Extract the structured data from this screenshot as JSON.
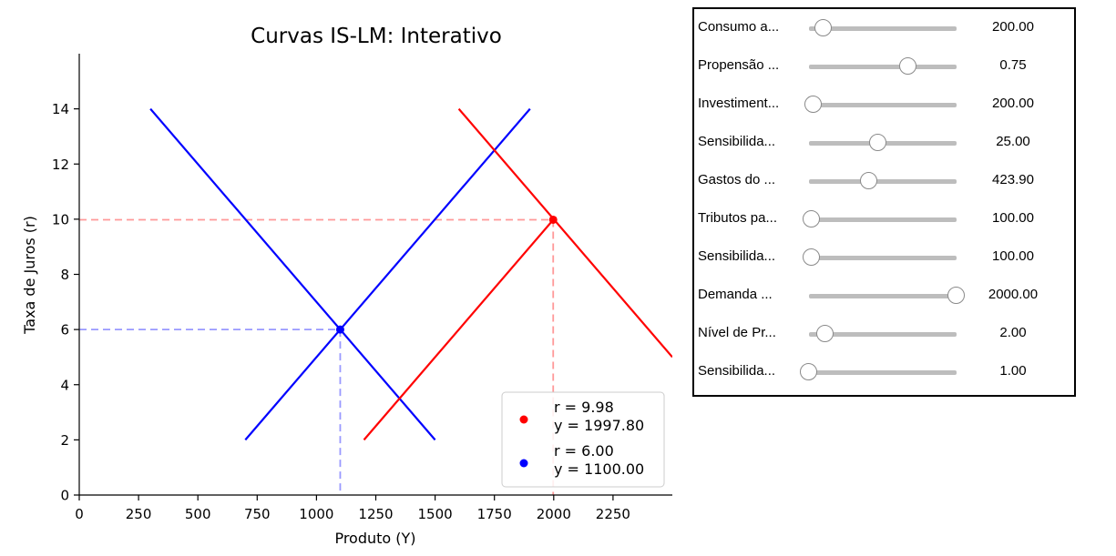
{
  "chart_data": {
    "type": "line",
    "title": "Curvas IS-LM: Interativo",
    "xlabel": "Produto (Y)",
    "ylabel": "Taxa de Juros (r)",
    "xlim": [
      0,
      2500
    ],
    "ylim": [
      0,
      16
    ],
    "xticks": [
      0,
      250,
      500,
      750,
      1000,
      1250,
      1500,
      1750,
      2000,
      2250
    ],
    "yticks": [
      0,
      2,
      4,
      6,
      8,
      10,
      12,
      14
    ],
    "grid": false,
    "legend_position": "lower right",
    "series": [
      {
        "color": "#0000ff",
        "x": [
          300,
          1500
        ],
        "y": [
          14,
          2
        ]
      },
      {
        "color": "#0000ff",
        "x": [
          700,
          1900
        ],
        "y": [
          2,
          14
        ]
      },
      {
        "color": "#ff0000",
        "x": [
          1600,
          2500
        ],
        "y": [
          14,
          5
        ]
      },
      {
        "color": "#ff0000",
        "x": [
          1200,
          2000
        ],
        "y": [
          2,
          10
        ]
      }
    ],
    "equilibria": [
      {
        "color": "#ff0000",
        "r": 9.98,
        "y": 1997.8,
        "label": "r = 9.98\ny = 1997.80"
      },
      {
        "color": "#0000ff",
        "r": 6.0,
        "y": 1100.0,
        "label": "r = 6.00\ny = 1100.00"
      }
    ],
    "reference_lines_color": {
      "red": "#ff9999",
      "blue": "#9999ff"
    }
  },
  "controls": {
    "sliders": [
      {
        "label": "Consumo a...",
        "value": "200.00",
        "fraction": 0.1
      },
      {
        "label": "Propensão ...",
        "value": "0.75",
        "fraction": 0.67
      },
      {
        "label": "Investiment...",
        "value": "200.00",
        "fraction": 0.03
      },
      {
        "label": "Sensibilida...",
        "value": "25.00",
        "fraction": 0.47
      },
      {
        "label": "Gastos do ...",
        "value": "423.90",
        "fraction": 0.41
      },
      {
        "label": "Tributos pa...",
        "value": "100.00",
        "fraction": 0.02
      },
      {
        "label": "Sensibilida...",
        "value": "100.00",
        "fraction": 0.02
      },
      {
        "label": "Demanda ...",
        "value": "2000.00",
        "fraction": 1.0
      },
      {
        "label": "Nível de Pr...",
        "value": "2.00",
        "fraction": 0.11
      },
      {
        "label": "Sensibilida...",
        "value": "1.00",
        "fraction": 0.0
      }
    ]
  }
}
